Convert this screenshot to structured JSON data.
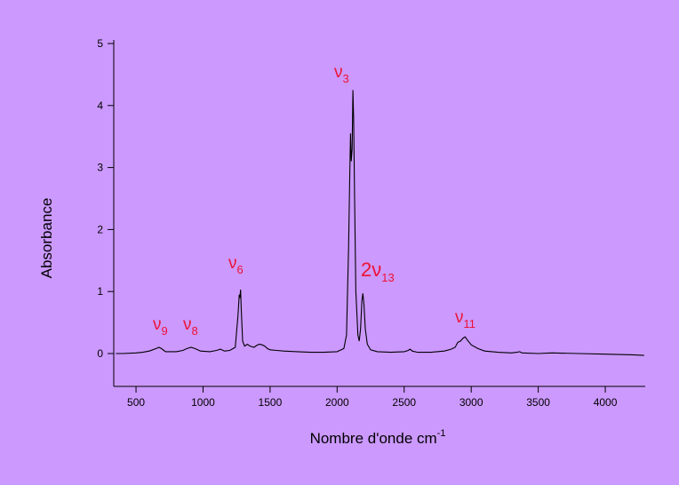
{
  "chart_data": {
    "type": "line",
    "background": "#cc99ff",
    "x_label": {
      "text": "Nombre d'onde cm",
      "sup": "-1"
    },
    "y_label": "Absorbance",
    "xlim": [
      334,
      4298
    ],
    "ylim": [
      -0.53,
      5
    ],
    "xticks": [
      500,
      1000,
      1500,
      2000,
      2500,
      3000,
      3500,
      4000
    ],
    "yticks": [
      0,
      1,
      2,
      3,
      4,
      5
    ],
    "annotations": [
      {
        "main": "ν",
        "sub": "9"
      },
      {
        "main": "ν",
        "sub": "8"
      },
      {
        "main": "ν",
        "sub": "6"
      },
      {
        "main": "ν",
        "sub": "3"
      },
      {
        "main": "2ν",
        "sub": "13"
      },
      {
        "main": "ν",
        "sub": "11"
      }
    ],
    "annotation_color": "#ee1133",
    "series": [
      {
        "color": "#000000",
        "x": [
          350,
          400,
          500,
          550,
          600,
          650,
          670,
          690,
          720,
          800,
          850,
          880,
          910,
          940,
          980,
          1050,
          1100,
          1130,
          1160,
          1200,
          1240,
          1260,
          1270,
          1275,
          1280,
          1285,
          1295,
          1310,
          1330,
          1350,
          1380,
          1400,
          1420,
          1440,
          1460,
          1480,
          1500,
          1550,
          1600,
          1700,
          1800,
          1900,
          2000,
          2050,
          2070,
          2085,
          2095,
          2100,
          2105,
          2112,
          2118,
          2123,
          2130,
          2140,
          2155,
          2165,
          2175,
          2185,
          2192,
          2200,
          2210,
          2225,
          2250,
          2300,
          2400,
          2500,
          2530,
          2545,
          2560,
          2600,
          2700,
          2800,
          2850,
          2880,
          2900,
          2920,
          2940,
          2955,
          2970,
          3000,
          3050,
          3100,
          3200,
          3300,
          3340,
          3360,
          3380,
          3500,
          3600,
          3800,
          4000,
          4200,
          4290
        ],
        "values": [
          0.0,
          0.0,
          0.01,
          0.02,
          0.04,
          0.08,
          0.1,
          0.08,
          0.03,
          0.03,
          0.05,
          0.08,
          0.1,
          0.08,
          0.04,
          0.03,
          0.05,
          0.07,
          0.04,
          0.05,
          0.1,
          0.6,
          0.95,
          0.9,
          1.03,
          0.7,
          0.2,
          0.12,
          0.15,
          0.12,
          0.1,
          0.13,
          0.15,
          0.14,
          0.12,
          0.08,
          0.06,
          0.05,
          0.04,
          0.03,
          0.02,
          0.02,
          0.03,
          0.08,
          0.3,
          1.7,
          3.0,
          3.55,
          3.1,
          3.3,
          4.25,
          3.8,
          2.6,
          1.0,
          0.3,
          0.2,
          0.4,
          0.85,
          0.97,
          0.8,
          0.4,
          0.15,
          0.06,
          0.03,
          0.02,
          0.03,
          0.05,
          0.07,
          0.04,
          0.02,
          0.02,
          0.04,
          0.07,
          0.1,
          0.18,
          0.2,
          0.25,
          0.27,
          0.22,
          0.14,
          0.08,
          0.04,
          0.02,
          0.01,
          0.02,
          0.03,
          0.01,
          0.0,
          0.01,
          0.0,
          -0.01,
          -0.02,
          -0.03
        ]
      }
    ]
  }
}
